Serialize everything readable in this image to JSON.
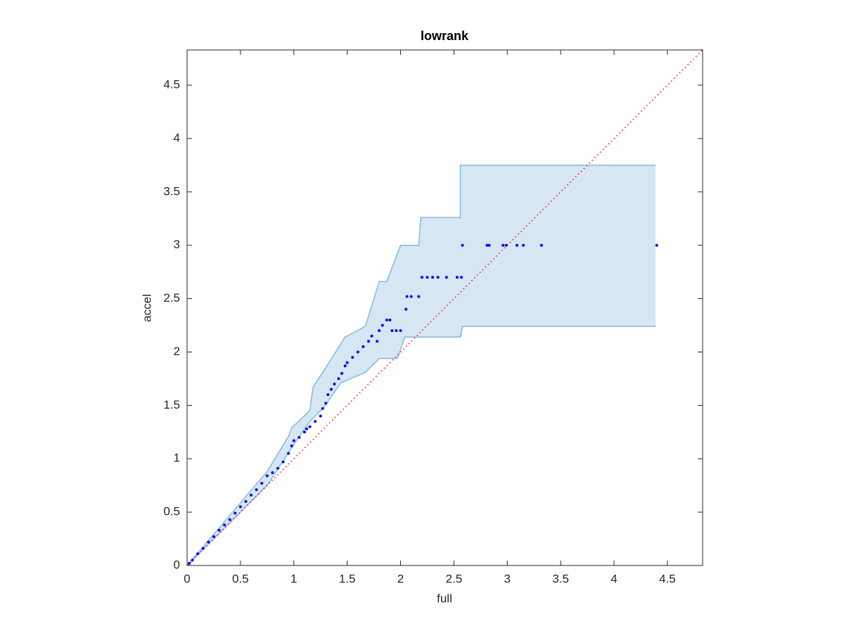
{
  "chart_data": {
    "type": "scatter",
    "title": "lowrank",
    "x_label": "full",
    "y_label": "accel",
    "xlim": [
      0,
      4.83
    ],
    "ylim": [
      0,
      4.83
    ],
    "xticks": [
      0,
      0.5,
      1,
      1.5,
      2,
      2.5,
      3,
      3.5,
      4,
      4.5
    ],
    "yticks": [
      0,
      0.5,
      1,
      1.5,
      2,
      2.5,
      3,
      3.5,
      4,
      4.5
    ],
    "points": {
      "color": "#0000ff",
      "x": [
        0.02,
        0.05,
        0.1,
        0.15,
        0.2,
        0.25,
        0.3,
        0.35,
        0.4,
        0.45,
        0.5,
        0.55,
        0.6,
        0.65,
        0.7,
        0.75,
        0.8,
        0.85,
        0.9,
        0.95,
        0.98,
        1.0,
        1.05,
        1.1,
        1.12,
        1.15,
        1.2,
        1.25,
        1.27,
        1.3,
        1.32,
        1.35,
        1.38,
        1.42,
        1.45,
        1.48,
        1.5,
        1.55,
        1.6,
        1.65,
        1.7,
        1.73,
        1.78,
        1.8,
        1.83,
        1.87,
        1.9,
        1.92,
        1.96,
        2.0,
        2.05,
        2.06,
        2.1,
        2.17,
        2.2,
        2.25,
        2.3,
        2.35,
        2.43,
        2.53,
        2.57,
        2.58,
        2.81,
        2.83,
        2.96,
        2.99,
        3.09,
        3.15,
        3.32,
        4.4
      ],
      "y": [
        0.02,
        0.05,
        0.11,
        0.16,
        0.22,
        0.27,
        0.33,
        0.38,
        0.43,
        0.49,
        0.55,
        0.6,
        0.66,
        0.71,
        0.77,
        0.84,
        0.87,
        0.91,
        0.97,
        1.05,
        1.12,
        1.17,
        1.2,
        1.25,
        1.28,
        1.3,
        1.35,
        1.4,
        1.47,
        1.52,
        1.6,
        1.65,
        1.7,
        1.75,
        1.8,
        1.87,
        1.9,
        1.95,
        2.0,
        2.05,
        2.1,
        2.15,
        2.1,
        2.2,
        2.25,
        2.3,
        2.3,
        2.2,
        2.2,
        2.2,
        2.4,
        2.52,
        2.52,
        2.52,
        2.7,
        2.7,
        2.7,
        2.7,
        2.7,
        2.7,
        2.7,
        3.0,
        3.0,
        3.0,
        3.0,
        3.0,
        3.0,
        3.0,
        3.0,
        3.0
      ]
    },
    "band": {
      "color": "#d6e6f3",
      "edge_color": "#84b9dc",
      "upper": {
        "x": [
          0,
          0.75,
          0.95,
          0.98,
          1.15,
          1.18,
          1.31,
          1.48,
          1.67,
          1.8,
          1.87,
          2.0,
          2.17,
          2.19,
          2.56,
          2.56,
          4.39
        ],
        "y": [
          0,
          0.88,
          1.21,
          1.29,
          1.45,
          1.67,
          1.87,
          2.14,
          2.24,
          2.66,
          2.66,
          3.0,
          3.0,
          3.26,
          3.26,
          3.75,
          3.75
        ]
      },
      "lower": {
        "x": [
          0,
          0.75,
          1.01,
          1.15,
          1.28,
          1.44,
          1.67,
          1.8,
          1.97,
          2.04,
          2.27,
          2.36,
          2.56,
          2.58,
          4.39
        ],
        "y": [
          0,
          0.75,
          1.15,
          1.35,
          1.48,
          1.71,
          1.81,
          1.94,
          1.94,
          2.14,
          2.14,
          2.14,
          2.14,
          2.24,
          2.24
        ]
      }
    },
    "reference_line_color": "#ff0000"
  }
}
